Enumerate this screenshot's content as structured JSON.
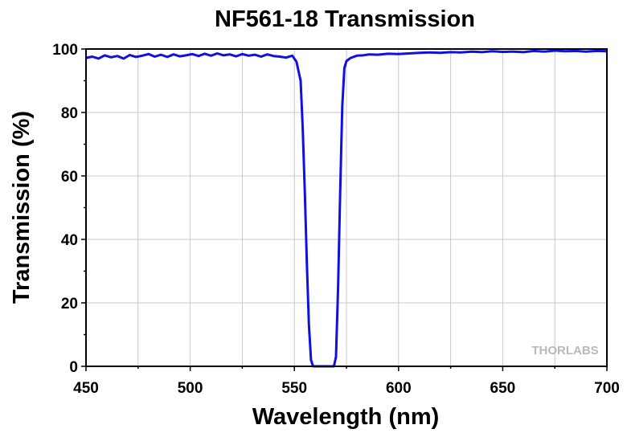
{
  "chart_data": {
    "type": "line",
    "title": "NF561-18 Transmission",
    "xlabel": "Wavelength (nm)",
    "ylabel": "Transmission (%)",
    "xlim": [
      450,
      700
    ],
    "ylim": [
      0,
      100
    ],
    "xticks": [
      450,
      500,
      550,
      600,
      650,
      700
    ],
    "yticks": [
      0,
      20,
      40,
      60,
      80,
      100
    ],
    "grid": true,
    "series": [
      {
        "color": "#1010e0",
        "x": [
          450,
          453,
          456,
          459,
          462,
          465,
          468,
          471,
          474,
          477,
          480,
          483,
          486,
          489,
          492,
          495,
          498,
          501,
          504,
          507,
          510,
          513,
          516,
          519,
          522,
          525,
          528,
          531,
          534,
          537,
          540,
          543,
          546,
          549,
          551,
          553,
          554,
          555,
          556,
          557,
          558,
          559,
          560,
          562,
          564,
          566,
          568,
          569,
          570,
          571,
          572,
          573,
          574,
          575,
          577,
          580,
          583,
          586,
          590,
          595,
          600,
          605,
          610,
          615,
          620,
          625,
          630,
          635,
          640,
          645,
          650,
          655,
          660,
          665,
          670,
          675,
          680,
          685,
          690,
          695,
          700
        ],
        "y": [
          97.2,
          97.6,
          97.0,
          98.0,
          97.4,
          97.8,
          97.0,
          98.1,
          97.5,
          97.9,
          98.4,
          97.6,
          98.2,
          97.5,
          98.3,
          97.7,
          98.0,
          98.4,
          97.8,
          98.5,
          97.9,
          98.6,
          98.0,
          98.3,
          97.7,
          98.4,
          97.9,
          98.2,
          97.6,
          98.3,
          97.8,
          97.6,
          97.3,
          97.9,
          96.0,
          90.0,
          75.0,
          55.0,
          32.0,
          13.0,
          2.0,
          0.0,
          0.0,
          0.0,
          0.0,
          0.0,
          0.0,
          0.0,
          3.0,
          25.0,
          55.0,
          82.0,
          94.0,
          96.2,
          97.2,
          97.9,
          98.0,
          98.3,
          98.2,
          98.5,
          98.4,
          98.6,
          98.8,
          98.9,
          98.8,
          99.0,
          98.9,
          99.2,
          99.0,
          99.3,
          99.1,
          99.2,
          99.0,
          99.4,
          99.2,
          99.5,
          99.3,
          99.4,
          99.2,
          99.4,
          99.3
        ]
      }
    ]
  },
  "watermark": "THORLABS"
}
